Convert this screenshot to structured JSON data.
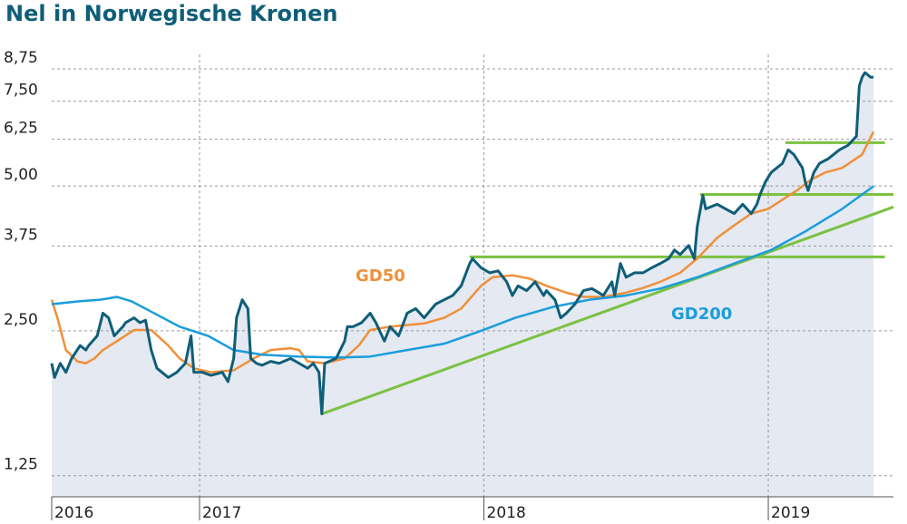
{
  "chart_data": {
    "type": "line",
    "title": "Nel in Norwegische Kronen",
    "log_y": true,
    "grid": true,
    "xlim": [
      2016.48,
      2019.44
    ],
    "xticks": [
      {
        "value": 2016.48,
        "label": "2016"
      },
      2017,
      2018,
      2019
    ],
    "ylim": [
      1.13,
      9.38
    ],
    "yticks": [
      {
        "value": 1.25,
        "label": "1,25"
      },
      {
        "value": 2.5,
        "label": "2,50"
      },
      {
        "value": 3.75,
        "label": "3,75"
      },
      {
        "value": 5,
        "label": "5,00"
      },
      {
        "value": 6.25,
        "label": "6,25"
      },
      {
        "value": 7.5,
        "label": "7,50"
      },
      {
        "value": 8.75,
        "label": "8,75"
      }
    ],
    "area_color": "#e4e9f2",
    "series": [
      {
        "color": "#0f5e78",
        "x": [
          2016.48,
          2016.49,
          2016.51,
          2016.53,
          2016.55,
          2016.58,
          2016.6,
          2016.61,
          2016.64,
          2016.66,
          2016.68,
          2016.7,
          2016.73,
          2016.74,
          2016.77,
          2016.79,
          2016.81,
          2016.83,
          2016.85,
          2016.89,
          2016.92,
          2016.95,
          2016.97,
          2016.98,
          2017.01,
          2017.04,
          2017.08,
          2017.1,
          2017.12,
          2017.13,
          2017.15,
          2017.17,
          2017.18,
          2017.2,
          2017.22,
          2017.25,
          2017.28,
          2017.32,
          2017.35,
          2017.38,
          2017.4,
          2017.42,
          2017.43,
          2017.44,
          2017.48,
          2017.51,
          2017.52,
          2017.54,
          2017.57,
          2017.6,
          2017.62,
          2017.65,
          2017.67,
          2017.7,
          2017.73,
          2017.76,
          2017.79,
          2017.83,
          2017.86,
          2017.89,
          2017.92,
          2017.95,
          2017.96,
          2017.99,
          2018.02,
          2018.05,
          2018.08,
          2018.1,
          2018.12,
          2018.15,
          2018.18,
          2018.21,
          2018.22,
          2018.25,
          2018.27,
          2018.29,
          2018.32,
          2018.35,
          2018.38,
          2018.42,
          2018.45,
          2018.46,
          2018.48,
          2018.5,
          2018.53,
          2018.56,
          2018.59,
          2018.62,
          2018.65,
          2018.67,
          2018.69,
          2018.72,
          2018.74,
          2018.75,
          2018.77,
          2018.78,
          2018.82,
          2018.85,
          2018.88,
          2018.91,
          2018.94,
          2018.96,
          2018.97,
          2018.99,
          2019.01,
          2019.03,
          2019.05,
          2019.07,
          2019.09,
          2019.1,
          2019.12,
          2019.13,
          2019.14,
          2019.16,
          2019.18,
          2019.21,
          2019.25,
          2019.28,
          2019.31,
          2019.32,
          2019.33,
          2019.34,
          2019.36,
          2019.37
        ],
        "values": [
          2.14,
          2.0,
          2.14,
          2.05,
          2.19,
          2.33,
          2.28,
          2.33,
          2.44,
          2.72,
          2.66,
          2.44,
          2.55,
          2.6,
          2.66,
          2.6,
          2.63,
          2.28,
          2.09,
          2.0,
          2.05,
          2.14,
          2.44,
          2.05,
          2.05,
          2.02,
          2.05,
          1.96,
          2.19,
          2.66,
          2.9,
          2.78,
          2.19,
          2.14,
          2.12,
          2.16,
          2.14,
          2.19,
          2.14,
          2.09,
          2.14,
          2.05,
          1.68,
          2.14,
          2.19,
          2.38,
          2.55,
          2.55,
          2.6,
          2.72,
          2.6,
          2.38,
          2.55,
          2.44,
          2.72,
          2.78,
          2.66,
          2.84,
          2.9,
          2.96,
          3.1,
          3.45,
          3.53,
          3.38,
          3.3,
          3.33,
          3.16,
          2.96,
          3.1,
          3.03,
          3.16,
          2.96,
          3.03,
          2.9,
          2.66,
          2.72,
          2.84,
          3.03,
          3.06,
          2.96,
          3.16,
          2.96,
          3.45,
          3.23,
          3.3,
          3.3,
          3.38,
          3.45,
          3.53,
          3.68,
          3.6,
          3.76,
          3.53,
          4.11,
          4.78,
          4.48,
          4.58,
          4.48,
          4.38,
          4.58,
          4.38,
          4.58,
          4.78,
          5.1,
          5.33,
          5.45,
          5.57,
          5.94,
          5.81,
          5.69,
          5.45,
          5.1,
          4.89,
          5.33,
          5.57,
          5.69,
          5.94,
          6.07,
          6.34,
          8.06,
          8.41,
          8.6,
          8.41,
          8.41
        ]
      },
      {
        "name": "GD50",
        "color": "#f0903a",
        "x": [
          2016.48,
          2016.5,
          2016.53,
          2016.57,
          2016.6,
          2016.63,
          2016.66,
          2016.71,
          2016.77,
          2016.83,
          2016.89,
          2016.93,
          2016.98,
          2017.04,
          2017.12,
          2017.19,
          2017.25,
          2017.32,
          2017.35,
          2017.38,
          2017.44,
          2017.51,
          2017.56,
          2017.6,
          2017.67,
          2017.73,
          2017.79,
          2017.86,
          2017.92,
          2017.99,
          2018.03,
          2018.1,
          2018.16,
          2018.22,
          2018.29,
          2018.35,
          2018.42,
          2018.5,
          2018.56,
          2018.62,
          2018.69,
          2018.75,
          2018.82,
          2018.88,
          2018.94,
          2019.0,
          2019.05,
          2019.1,
          2019.15,
          2019.2,
          2019.26,
          2019.33,
          2019.37
        ],
        "values": [
          2.9,
          2.66,
          2.28,
          2.16,
          2.14,
          2.19,
          2.28,
          2.38,
          2.51,
          2.51,
          2.33,
          2.19,
          2.09,
          2.05,
          2.07,
          2.19,
          2.28,
          2.3,
          2.28,
          2.16,
          2.14,
          2.19,
          2.33,
          2.51,
          2.55,
          2.57,
          2.59,
          2.66,
          2.78,
          3.1,
          3.23,
          3.26,
          3.21,
          3.1,
          3.0,
          2.94,
          2.94,
          3.0,
          3.07,
          3.16,
          3.3,
          3.53,
          3.9,
          4.14,
          4.38,
          4.48,
          4.68,
          4.89,
          5.15,
          5.33,
          5.45,
          5.81,
          6.48
        ]
      },
      {
        "name": "GD200",
        "color": "#1a9ddb",
        "x": [
          2016.48,
          2016.58,
          2016.65,
          2016.71,
          2016.76,
          2016.84,
          2016.93,
          2017.03,
          2017.12,
          2017.22,
          2017.35,
          2017.48,
          2017.6,
          2017.73,
          2017.86,
          2017.99,
          2018.11,
          2018.24,
          2018.37,
          2018.5,
          2018.62,
          2018.75,
          2018.88,
          2019.01,
          2019.13,
          2019.26,
          2019.37
        ],
        "values": [
          2.84,
          2.88,
          2.9,
          2.94,
          2.88,
          2.72,
          2.55,
          2.44,
          2.28,
          2.23,
          2.21,
          2.2,
          2.21,
          2.28,
          2.35,
          2.5,
          2.66,
          2.8,
          2.9,
          2.96,
          3.06,
          3.23,
          3.45,
          3.68,
          4.02,
          4.48,
          4.99
        ]
      }
    ],
    "reference_color": "#7cc142",
    "reference_lines": [
      {
        "x": [
          2017.43,
          2019.44
        ],
        "values": [
          1.68,
          4.52
        ]
      },
      {
        "x": [
          2017.95,
          2019.41
        ],
        "values": [
          3.56,
          3.56
        ]
      },
      {
        "x": [
          2018.76,
          2019.44
        ],
        "values": [
          4.8,
          4.8
        ]
      },
      {
        "x": [
          2019.06,
          2019.41
        ],
        "values": [
          6.15,
          6.15
        ]
      }
    ]
  }
}
